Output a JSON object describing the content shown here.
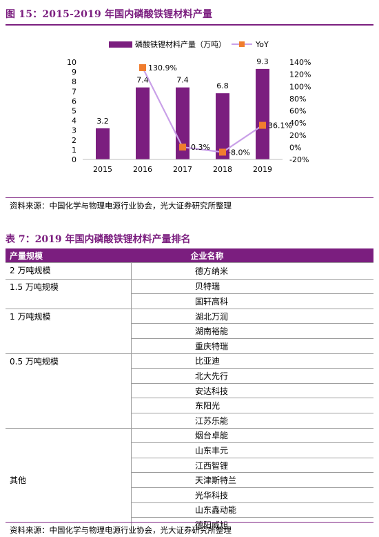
{
  "figure": {
    "title": "图 15：2015-2019 年国内磷酸铁锂材料产量",
    "source": "资料来源：中国化学与物理电源行业协会，光大证券研究所整理"
  },
  "chart_data": {
    "type": "bar",
    "categories": [
      "2015",
      "2016",
      "2017",
      "2018",
      "2019"
    ],
    "series": [
      {
        "name": "磷酸铁锂材料产量（万吨）",
        "type": "bar",
        "axis": "left",
        "values": [
          3.2,
          7.4,
          7.4,
          6.8,
          9.3
        ],
        "labels": [
          "3.2",
          "7.4",
          "7.4",
          "6.8",
          "9.3"
        ],
        "color": "#7b1e7f"
      },
      {
        "name": "YoY",
        "type": "line",
        "axis": "right",
        "values": [
          null,
          130.9,
          0.3,
          -8.0,
          36.1
        ],
        "labels": [
          "",
          "130.9%",
          "0.3%",
          "-8.0%",
          "36.1%"
        ],
        "line_color": "#c9a0e8",
        "marker_color": "#f07d2e"
      }
    ],
    "y_left": {
      "lim": [
        0,
        10
      ],
      "ticks": [
        "0",
        "1",
        "2",
        "3",
        "4",
        "5",
        "6",
        "7",
        "8",
        "9",
        "10"
      ]
    },
    "y_right": {
      "lim": [
        -20,
        140
      ],
      "ticks": [
        "-20%",
        "0%",
        "20%",
        "40%",
        "60%",
        "80%",
        "100%",
        "120%",
        "140%"
      ]
    },
    "legend_position": "top",
    "grid": false
  },
  "table": {
    "title": "表 7：2019 年国内磷酸铁锂材料产量排名",
    "headers": [
      "产量规模",
      "企业名称"
    ],
    "groups": [
      {
        "label": "2 万吨规模",
        "companies": [
          "德方纳米"
        ]
      },
      {
        "label": "1.5 万吨规模",
        "companies": [
          "贝特瑞",
          "国轩高科"
        ]
      },
      {
        "label": "1 万吨规模",
        "companies": [
          "湖北万润",
          "湖南裕能",
          "重庆特瑞"
        ]
      },
      {
        "label": "0.5 万吨规模",
        "companies": [
          "比亚迪",
          "北大先行",
          "安达科技",
          "东阳光",
          "江苏乐能"
        ]
      },
      {
        "label": "其他",
        "companies": [
          "烟台卓能",
          "山东丰元",
          "江西智锂",
          "天津斯特兰",
          "光华科技",
          "山东鑫动能",
          "德阳威旭"
        ]
      }
    ],
    "source": "资料来源：中国化学与物理电源行业协会，光大证券研究所整理"
  }
}
